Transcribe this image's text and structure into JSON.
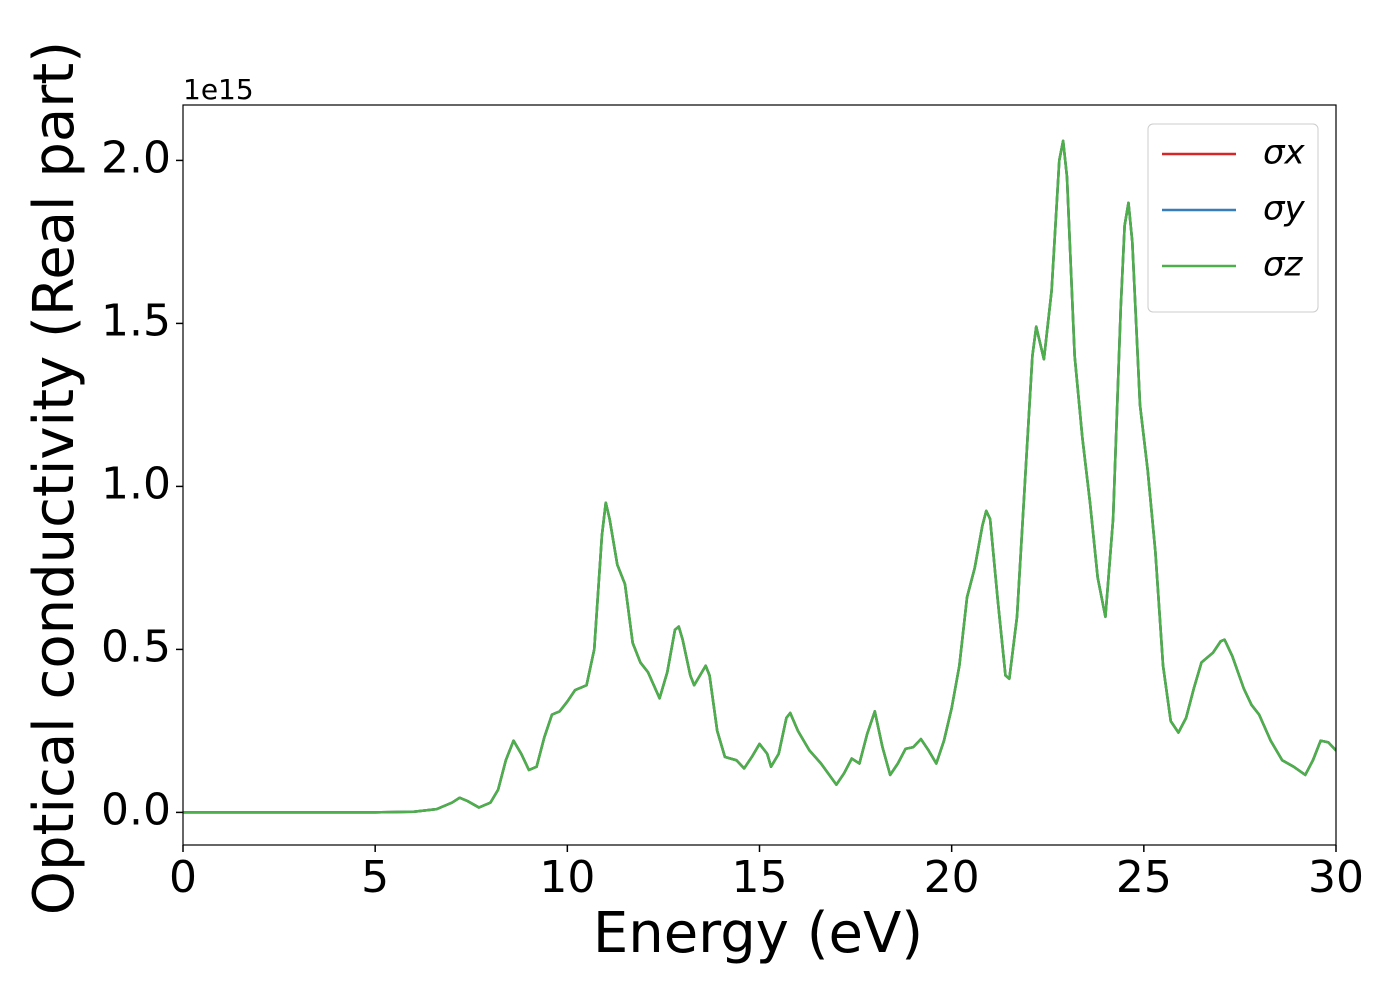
{
  "chart_data": {
    "type": "line",
    "xlabel": "Energy (eV)",
    "ylabel": "Optical conductivity (Real part)",
    "y_offset_label": "1e15",
    "x": [
      0,
      5,
      6,
      6.6,
      7.0,
      7.2,
      7.4,
      7.7,
      8.0,
      8.2,
      8.4,
      8.6,
      8.8,
      9.0,
      9.2,
      9.4,
      9.6,
      9.8,
      10.0,
      10.2,
      10.5,
      10.7,
      10.9,
      11.0,
      11.1,
      11.3,
      11.5,
      11.7,
      11.9,
      12.1,
      12.4,
      12.6,
      12.8,
      12.9,
      13.0,
      13.2,
      13.3,
      13.4,
      13.6,
      13.7,
      13.9,
      14.1,
      14.4,
      14.6,
      14.8,
      15.0,
      15.2,
      15.3,
      15.5,
      15.7,
      15.8,
      16.0,
      16.3,
      16.6,
      17.0,
      17.2,
      17.4,
      17.6,
      17.8,
      18.0,
      18.2,
      18.4,
      18.6,
      18.8,
      19.0,
      19.2,
      19.4,
      19.6,
      19.8,
      20.0,
      20.2,
      20.4,
      20.6,
      20.8,
      20.9,
      21.0,
      21.2,
      21.4,
      21.5,
      21.7,
      21.9,
      22.1,
      22.2,
      22.4,
      22.6,
      22.8,
      22.9,
      23.0,
      23.2,
      23.4,
      23.6,
      23.8,
      24.0,
      24.2,
      24.4,
      24.5,
      24.6,
      24.7,
      24.9,
      25.1,
      25.3,
      25.5,
      25.7,
      25.9,
      26.1,
      26.3,
      26.5,
      26.8,
      27.0,
      27.1,
      27.3,
      27.6,
      27.8,
      28.0,
      28.3,
      28.6,
      28.9,
      29.2,
      29.4,
      29.6,
      29.8,
      30.0
    ],
    "series": [
      {
        "name": "σx",
        "color": "#d62728",
        "values": [
          0,
          0,
          0.002,
          0.01,
          0.03,
          0.045,
          0.035,
          0.015,
          0.03,
          0.07,
          0.16,
          0.22,
          0.18,
          0.13,
          0.14,
          0.23,
          0.3,
          0.31,
          0.34,
          0.375,
          0.39,
          0.5,
          0.85,
          0.95,
          0.9,
          0.76,
          0.7,
          0.52,
          0.46,
          0.43,
          0.35,
          0.43,
          0.56,
          0.57,
          0.53,
          0.42,
          0.39,
          0.41,
          0.45,
          0.42,
          0.25,
          0.17,
          0.16,
          0.135,
          0.17,
          0.21,
          0.18,
          0.14,
          0.18,
          0.29,
          0.305,
          0.25,
          0.19,
          0.15,
          0.085,
          0.12,
          0.165,
          0.15,
          0.24,
          0.31,
          0.2,
          0.115,
          0.15,
          0.195,
          0.2,
          0.225,
          0.19,
          0.15,
          0.22,
          0.32,
          0.45,
          0.66,
          0.75,
          0.88,
          0.925,
          0.9,
          0.65,
          0.42,
          0.41,
          0.6,
          1.0,
          1.4,
          1.49,
          1.39,
          1.6,
          2.0,
          2.06,
          1.95,
          1.4,
          1.15,
          0.95,
          0.72,
          0.6,
          0.9,
          1.55,
          1.8,
          1.87,
          1.75,
          1.25,
          1.05,
          0.8,
          0.45,
          0.28,
          0.245,
          0.29,
          0.38,
          0.46,
          0.49,
          0.525,
          0.53,
          0.48,
          0.38,
          0.33,
          0.3,
          0.22,
          0.16,
          0.14,
          0.115,
          0.16,
          0.22,
          0.215,
          0.19
        ]
      },
      {
        "name": "σy",
        "color": "#377eb8",
        "values": [
          0,
          0,
          0.002,
          0.01,
          0.03,
          0.045,
          0.035,
          0.015,
          0.03,
          0.07,
          0.16,
          0.22,
          0.18,
          0.13,
          0.14,
          0.23,
          0.3,
          0.31,
          0.34,
          0.375,
          0.39,
          0.5,
          0.85,
          0.95,
          0.9,
          0.76,
          0.7,
          0.52,
          0.46,
          0.43,
          0.35,
          0.43,
          0.56,
          0.57,
          0.53,
          0.42,
          0.39,
          0.41,
          0.45,
          0.42,
          0.25,
          0.17,
          0.16,
          0.135,
          0.17,
          0.21,
          0.18,
          0.14,
          0.18,
          0.29,
          0.305,
          0.25,
          0.19,
          0.15,
          0.085,
          0.12,
          0.165,
          0.15,
          0.24,
          0.31,
          0.2,
          0.115,
          0.15,
          0.195,
          0.2,
          0.225,
          0.19,
          0.15,
          0.22,
          0.32,
          0.45,
          0.66,
          0.75,
          0.88,
          0.925,
          0.9,
          0.65,
          0.42,
          0.41,
          0.6,
          1.0,
          1.4,
          1.49,
          1.39,
          1.6,
          2.0,
          2.06,
          1.95,
          1.4,
          1.15,
          0.95,
          0.72,
          0.6,
          0.9,
          1.55,
          1.8,
          1.87,
          1.75,
          1.25,
          1.05,
          0.8,
          0.45,
          0.28,
          0.245,
          0.29,
          0.38,
          0.46,
          0.49,
          0.525,
          0.53,
          0.48,
          0.38,
          0.33,
          0.3,
          0.22,
          0.16,
          0.14,
          0.115,
          0.16,
          0.22,
          0.215,
          0.19
        ]
      },
      {
        "name": "σz",
        "color": "#4daf4a",
        "values": [
          0,
          0,
          0.002,
          0.01,
          0.03,
          0.045,
          0.035,
          0.015,
          0.03,
          0.07,
          0.16,
          0.22,
          0.18,
          0.13,
          0.14,
          0.23,
          0.3,
          0.31,
          0.34,
          0.375,
          0.39,
          0.5,
          0.85,
          0.95,
          0.9,
          0.76,
          0.7,
          0.52,
          0.46,
          0.43,
          0.35,
          0.43,
          0.56,
          0.57,
          0.53,
          0.42,
          0.39,
          0.41,
          0.45,
          0.42,
          0.25,
          0.17,
          0.16,
          0.135,
          0.17,
          0.21,
          0.18,
          0.14,
          0.18,
          0.29,
          0.305,
          0.25,
          0.19,
          0.15,
          0.085,
          0.12,
          0.165,
          0.15,
          0.24,
          0.31,
          0.2,
          0.115,
          0.15,
          0.195,
          0.2,
          0.225,
          0.19,
          0.15,
          0.22,
          0.32,
          0.45,
          0.66,
          0.75,
          0.88,
          0.925,
          0.9,
          0.65,
          0.42,
          0.41,
          0.6,
          1.0,
          1.4,
          1.49,
          1.39,
          1.6,
          2.0,
          2.06,
          1.95,
          1.4,
          1.15,
          0.95,
          0.72,
          0.6,
          0.9,
          1.55,
          1.8,
          1.87,
          1.75,
          1.25,
          1.05,
          0.8,
          0.45,
          0.28,
          0.245,
          0.29,
          0.38,
          0.46,
          0.49,
          0.525,
          0.53,
          0.48,
          0.38,
          0.33,
          0.3,
          0.22,
          0.16,
          0.14,
          0.115,
          0.16,
          0.22,
          0.215,
          0.19
        ]
      }
    ],
    "xlim": [
      0,
      30
    ],
    "xticks": [
      0,
      5,
      10,
      15,
      20,
      25,
      30
    ],
    "ylim": [
      -0.1,
      2.17
    ],
    "yticks": [
      {
        "value": 0,
        "label": "0.0"
      },
      0.5,
      {
        "value": 1,
        "label": "1.0"
      },
      1.5,
      {
        "value": 2,
        "label": "2.0"
      }
    ],
    "grid": false,
    "legend": "upper right"
  }
}
